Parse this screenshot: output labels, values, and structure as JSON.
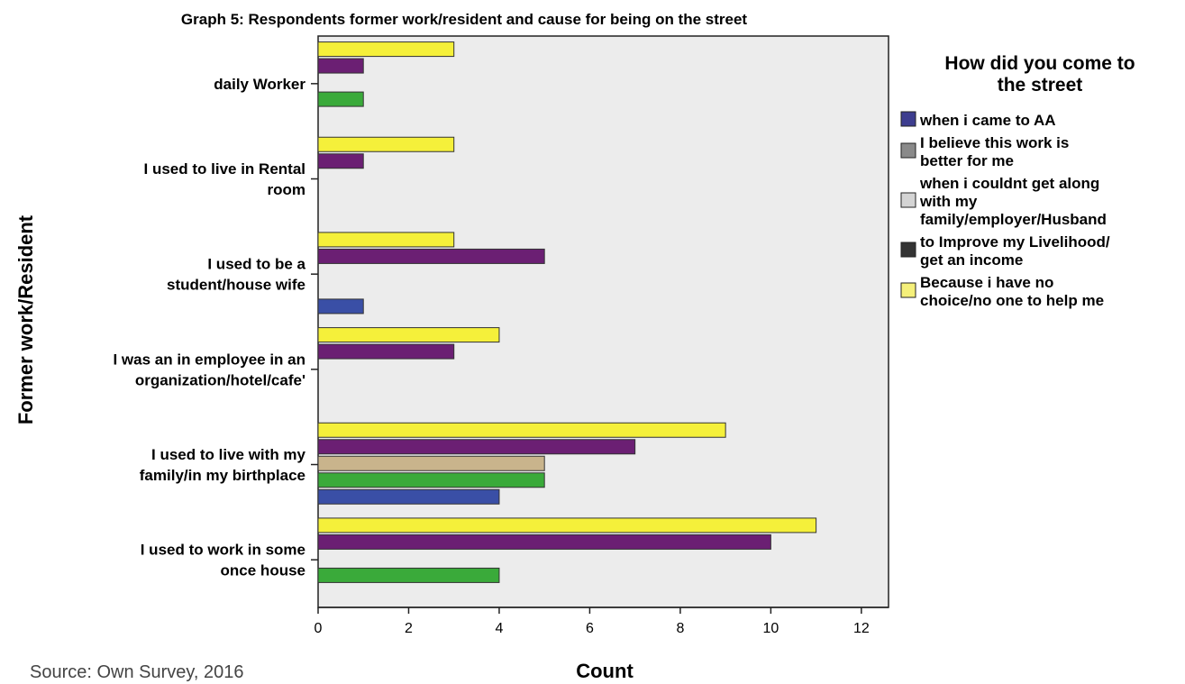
{
  "chart_data": {
    "type": "bar",
    "orientation": "horizontal",
    "title": "Graph 5: Respondents former work/resident and cause for being on the street",
    "xlabel": "Count",
    "ylabel": "Former work/Resident",
    "xlim": [
      0,
      12.6
    ],
    "xticks": [
      "0",
      "2",
      "4",
      "6",
      "8",
      "10",
      "12"
    ],
    "grid": false,
    "legend_position": "right",
    "legend_title": "How did you come to the street",
    "categories": [
      {
        "lines": [
          "daily Worker"
        ]
      },
      {
        "lines": [
          "I used to live in Rental",
          "room"
        ]
      },
      {
        "lines": [
          "I used to be a",
          "student/house wife"
        ]
      },
      {
        "lines": [
          "I was an in employee in an",
          "organization/hotel/cafe'"
        ]
      },
      {
        "lines": [
          "I used to live with my",
          "family/in my birthplace"
        ]
      },
      {
        "lines": [
          "I used to work in some",
          "once house"
        ]
      }
    ],
    "series": [
      {
        "name": "when i came to AA",
        "legend_lines": [
          "when i came to AA"
        ],
        "color": "#3a4fa6",
        "values": [
          0,
          0,
          1,
          0,
          4,
          0
        ]
      },
      {
        "name": "I believe this work is better for me",
        "legend_lines": [
          "I believe this work is",
          "better for me"
        ],
        "color": "#3aaa3a",
        "values": [
          1,
          0,
          0,
          0,
          5,
          4
        ]
      },
      {
        "name": "when i couldnt get along with my family/employer/Husband",
        "legend_lines": [
          "when i couldnt get along",
          "with my",
          "family/employer/Husband"
        ],
        "color": "#c9b48c",
        "values": [
          0,
          0,
          0,
          0,
          5,
          0
        ]
      },
      {
        "name": "to Improve my Livelihood/ get an income",
        "legend_lines": [
          "to Improve my Livelihood/",
          "get an income"
        ],
        "color": "#6b1f73",
        "values": [
          1,
          1,
          5,
          3,
          7,
          10
        ]
      },
      {
        "name": "Because i have no choice/no one to help me",
        "legend_lines": [
          "Because i have no",
          "choice/no one to help me"
        ],
        "color": "#f5f03a",
        "values": [
          3,
          3,
          3,
          4,
          9,
          11
        ]
      }
    ],
    "legend_swatch_colors": [
      "#3d3d8f",
      "#8a8a8a",
      "#d4d4d4",
      "#333333",
      "#f5f07a"
    ],
    "source_note": "Source: Own Survey, 2016"
  }
}
